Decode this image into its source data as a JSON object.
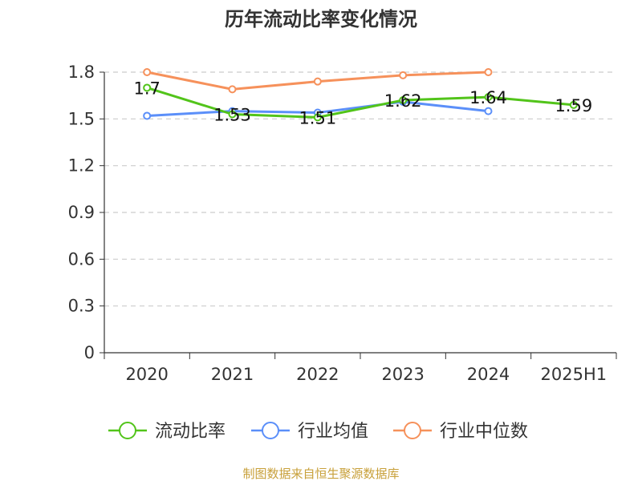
{
  "chart_data": {
    "type": "line",
    "title": "历年流动比率变化情况",
    "categories": [
      "2020",
      "2021",
      "2022",
      "2023",
      "2024",
      "2025H1"
    ],
    "ylim": [
      0,
      1.8
    ],
    "yticks": [
      0,
      0.3,
      0.6,
      0.9,
      1.2,
      1.5,
      1.8
    ],
    "ytick_labels": [
      "0",
      "0.3",
      "0.6",
      "0.9",
      "1.2",
      "1.5",
      "1.8"
    ],
    "grid": true,
    "legend_position": "bottom",
    "series": [
      {
        "name": "流动比率",
        "color": "#52c41a",
        "values": [
          1.7,
          1.53,
          1.51,
          1.62,
          1.64,
          1.59
        ],
        "labels": [
          "1.7",
          "1.53",
          "1.51",
          "1.62",
          "1.64",
          "1.59"
        ]
      },
      {
        "name": "行业均值",
        "color": "#5b8ff9",
        "values": [
          1.52,
          1.55,
          1.54,
          1.61,
          1.55,
          null
        ]
      },
      {
        "name": "行业中位数",
        "color": "#f6915b",
        "values": [
          1.8,
          1.69,
          1.74,
          1.78,
          1.8,
          null
        ]
      }
    ]
  },
  "source": "制图数据来自恒生聚源数据库"
}
